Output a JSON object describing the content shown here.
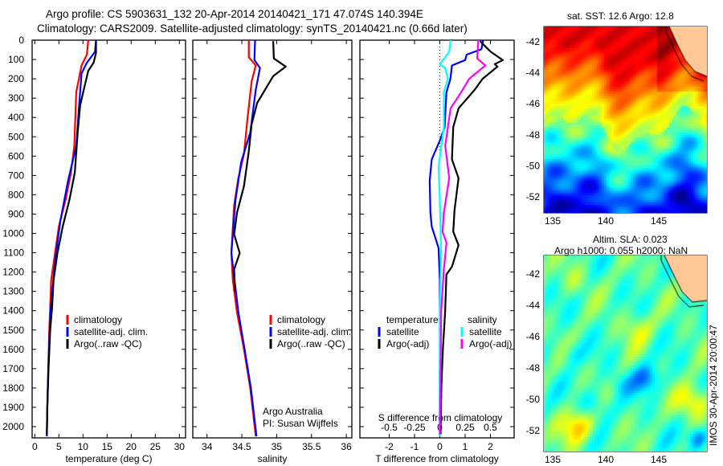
{
  "header": {
    "line1": "Argo profile: CS 5903631_132 20-Apr-2014 20140421_171 47.074S 140.394E",
    "line2": "Climatology: CARS2009. Satellite-adjusted climatology: synTS_20140421.nc (0.66d later)"
  },
  "colors": {
    "climatology": "#ff0000",
    "satellite": "#0000ff",
    "argo": "#000000",
    "s_satellite": "#00ffff",
    "s_argo": "#ff00ff",
    "land": "#ffc896"
  },
  "chart_data": [
    {
      "type": "line",
      "title": "",
      "xlabel": "temperature (deg C)",
      "ylabel": "",
      "xlim": [
        -0.5,
        31.5
      ],
      "ylim": [
        2050,
        0
      ],
      "xticks": [
        0,
        5,
        10,
        15,
        20,
        25,
        30
      ],
      "yticks": [
        0,
        100,
        200,
        300,
        400,
        500,
        600,
        700,
        800,
        900,
        1000,
        1100,
        1200,
        1300,
        1400,
        1500,
        1600,
        1700,
        1800,
        1900,
        2000
      ],
      "legend": [
        "climatology",
        "satellite-adj. clim.",
        "Argo(..raw -QC)"
      ],
      "legend_position": "lower-left",
      "series": [
        {
          "name": "climatology",
          "depth": [
            0,
            75,
            131,
            270,
            408,
            547,
            686,
            825,
            964,
            1102,
            1241,
            1380,
            1500,
            1700,
            1900,
            2050
          ],
          "values": [
            11.1,
            10.8,
            9.7,
            8.6,
            8.4,
            8.2,
            7.5,
            6.4,
            5.0,
            4.2,
            3.4,
            3.2,
            3.0,
            2.8,
            2.6,
            2.5
          ]
        },
        {
          "name": "satellite-adj. clim.",
          "depth": [
            0,
            60,
            117,
            172,
            339,
            547,
            728,
            936,
            1144,
            1394,
            1500,
            1700,
            1900,
            2050
          ],
          "values": [
            12.7,
            12.5,
            10.8,
            9.7,
            9.2,
            8.6,
            6.9,
            5.3,
            4.2,
            3.3,
            3.1,
            2.8,
            2.6,
            2.5
          ]
        },
        {
          "name": "Argo(..raw -QC)",
          "depth": [
            5,
            67,
            117,
            158,
            242,
            339,
            478,
            686,
            825,
            964,
            1102,
            1241,
            1380,
            1500,
            1700,
            1900,
            2040
          ],
          "values": [
            12.7,
            12.7,
            12.2,
            11.1,
            10.3,
            9.4,
            8.9,
            8.3,
            7.2,
            5.8,
            4.7,
            3.9,
            3.6,
            3.2,
            2.85,
            2.6,
            2.5
          ]
        }
      ]
    },
    {
      "type": "line",
      "xlabel": "salinity",
      "xlim": [
        33.8,
        36.1
      ],
      "ylim": [
        2050,
        0
      ],
      "xticks": [
        34,
        34.5,
        35,
        35.5,
        36
      ],
      "legend": [
        "climatology",
        "satellite-adj. clim.",
        "Argo(..raw -QC)"
      ],
      "annotation": [
        "Argo Australia",
        "PI: Susan Wijffels"
      ],
      "series": [
        {
          "name": "climatology",
          "depth": [
            0,
            88,
            131,
            214,
            408,
            589,
            714,
            853,
            1102,
            1241,
            1408,
            1600,
            1800,
            2050
          ],
          "values": [
            34.6,
            34.6,
            34.7,
            34.64,
            34.58,
            34.53,
            34.45,
            34.39,
            34.35,
            34.37,
            34.43,
            34.53,
            34.62,
            34.7
          ]
        },
        {
          "name": "satellite-adj. clim.",
          "depth": [
            0,
            103,
            144,
            256,
            478,
            631,
            825,
            1102,
            1408,
            1600,
            1800,
            2050
          ],
          "values": [
            34.69,
            34.68,
            34.76,
            34.7,
            34.62,
            34.49,
            34.41,
            34.35,
            34.45,
            34.54,
            34.63,
            34.71
          ]
        },
        {
          "name": "Argo(..raw -QC)",
          "depth": [
            5,
            95,
            137,
            186,
            325,
            436,
            575,
            755,
            894,
            1005,
            1102,
            1186,
            1300
          ],
          "values": [
            34.95,
            34.96,
            35.13,
            34.95,
            34.72,
            34.64,
            34.6,
            34.53,
            34.43,
            34.39,
            34.47,
            34.39,
            34.4
          ]
        }
      ]
    },
    {
      "type": "line",
      "xlabel": "T difference from climatology",
      "x2label": "S difference from climatology",
      "xlim": [
        -3.0,
        3.0
      ],
      "ylim": [
        2050,
        0
      ],
      "xticks": [
        -2,
        -1,
        0,
        1,
        2
      ],
      "x2ticks": [
        -0.5,
        -0.25,
        0,
        0.25,
        0.5
      ],
      "x2tick_labels": [
        "-0.5",
        "-0.25",
        "0",
        "0.25",
        "0.5"
      ],
      "legend_headers": [
        "temperature",
        "salinity"
      ],
      "legend": [
        "satellite",
        "Argo(-adj)",
        "satellite",
        "Argo(-adj)"
      ],
      "series": [
        {
          "name": "T satellite",
          "axis": "T",
          "depth": [
            0,
            47,
            75,
            103,
            131,
            200,
            270,
            450,
            520,
            617,
            728,
            894,
            964,
            1075,
            1241,
            1408,
            1700,
            2050
          ],
          "values": [
            1.71,
            1.64,
            1.06,
            1.0,
            0.48,
            0.42,
            0.26,
            0.19,
            0,
            -0.32,
            -0.4,
            -0.37,
            -0.32,
            -0.05,
            0,
            0,
            0,
            0
          ]
        },
        {
          "name": "T Argo(-adj)",
          "axis": "T",
          "depth": [
            5,
            60,
            103,
            124,
            137,
            200,
            256,
            353,
            450,
            617,
            714,
            880,
            991,
            1061,
            1172,
            1213,
            1408,
            1600,
            1800,
            2040
          ],
          "values": [
            1.59,
            2.01,
            2.49,
            2.17,
            2.28,
            1.69,
            1.38,
            0.74,
            0.53,
            0.48,
            0.74,
            0.58,
            0.53,
            0.74,
            0.48,
            0.26,
            0.21,
            0.12,
            0.06,
            0.03
          ]
        },
        {
          "name": "S satellite",
          "axis": "S",
          "depth": [
            0,
            60,
            125,
            143,
            200,
            270,
            450,
            658,
            825,
            1102,
            1408,
            1700,
            2050
          ],
          "values": [
            0.106,
            0.093,
            0,
            0.053,
            0.08,
            0.04,
            0.04,
            -0.013,
            0,
            0.013,
            0,
            0,
            0
          ]
        },
        {
          "name": "S Argo(-adj)",
          "axis": "S",
          "depth": [
            0,
            95,
            131,
            200,
            270,
            353,
            547,
            714,
            894,
            991,
            1047,
            1186,
            1408,
            1600,
            1800,
            2040
          ],
          "values": [
            0.38,
            0.37,
            0.45,
            0.29,
            0.21,
            0.106,
            0.053,
            0.093,
            0.04,
            0.026,
            0.066,
            0.04,
            0.013,
            0.01,
            0.005,
            0
          ]
        }
      ]
    }
  ],
  "maps": {
    "sst": {
      "title": "sat. SST: 12.6 Argo: 12.8",
      "lon_ticks": [
        "135",
        "140",
        "145"
      ],
      "lat_ticks": [
        "-42",
        "-44",
        "-46",
        "-48",
        "-50",
        "-52"
      ],
      "float_lon": 140.394,
      "float_lat": -47.074
    },
    "sla": {
      "title1": "Altim. SLA: 0.023",
      "title2": "Argo h1000: 0.055 h2000: NaN",
      "lon_ticks": [
        "135",
        "140",
        "145"
      ],
      "lat_ticks": [
        "-42",
        "-44",
        "-46",
        "-48",
        "-50",
        "-52"
      ],
      "float_lon": 140.394,
      "float_lat": -47.074
    },
    "credit": "IMOS 30-Apr-2014 20:00:47"
  }
}
